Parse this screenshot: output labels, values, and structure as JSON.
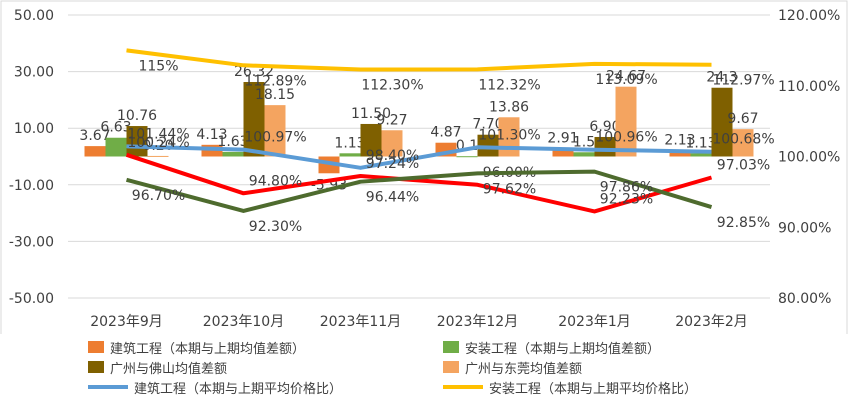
{
  "chart_data": {
    "type": "bar",
    "categories": [
      "2023年9月",
      "2023年10月",
      "2023年11月",
      "2023年12月",
      "2023年1月",
      "2023年2月"
    ],
    "y_left": {
      "min": -50,
      "max": 50,
      "ticks": [
        "50.00",
        "30.00",
        "10.00",
        "-10.00",
        "-30.00",
        "-50.00"
      ]
    },
    "y_right": {
      "min": 80,
      "max": 120,
      "ticks": [
        "120.00%",
        "110.00%",
        "100.00%",
        "90.00%",
        "80.00%"
      ]
    },
    "bar_series": [
      {
        "name": "建筑工程（本期与上期均值差额）",
        "color": "#ED7D31",
        "values": [
          3.67,
          4.13,
          -5.93,
          4.87,
          2.91,
          2.13
        ],
        "labels": [
          "3.67",
          "4.13",
          "-5.93",
          "4.87",
          "2.91",
          "2.13"
        ]
      },
      {
        "name": "安装工程（本期与上期均值差额）",
        "color": "#70AD47",
        "values": [
          6.63,
          1.63,
          1.13,
          0.1,
          1.5,
          1.13
        ],
        "labels": [
          "6.63",
          "1.63",
          "1.13",
          "0.1",
          "1.5",
          "1.13"
        ]
      },
      {
        "name": "广州与佛山均值差额",
        "color": "#7F6000",
        "values": [
          10.76,
          26.32,
          11.5,
          7.7,
          6.9,
          24.3
        ],
        "labels": [
          "10.76",
          "26.32",
          "11.50",
          "7.70",
          "6.90",
          "24.3"
        ]
      },
      {
        "name": "广州与东莞均值差额",
        "color": "#F4A460",
        "values": [
          0.2,
          18.15,
          9.27,
          13.86,
          24.67,
          9.67
        ],
        "labels": [
          "0.20",
          "18.15",
          "9.27",
          "13.86",
          "24.67",
          "9.67"
        ]
      }
    ],
    "line_series": [
      {
        "name": "建筑工程（本期与上期平均价格比）",
        "color": "#5B9BD5",
        "values": [
          101.44,
          100.97,
          98.4,
          101.3,
          100.96,
          100.68
        ],
        "labels": [
          "101.44%",
          "100.97%",
          "98.40%",
          "101.30%",
          "100.96%",
          "100.68%"
        ]
      },
      {
        "name": "安装工程（本期与上期平均价格比）",
        "color": "#FFC000",
        "values": [
          115,
          112.89,
          112.3,
          112.32,
          113.09,
          112.97
        ],
        "labels": [
          "115%",
          "112.89%",
          "112.30%",
          "112.32%",
          "113.09%",
          "112.97%"
        ]
      },
      {
        "name": "",
        "color": "#FF0000",
        "values": [
          100.24,
          94.8,
          97.24,
          96.0,
          92.23,
          97.03
        ],
        "labels": [
          "100.24%",
          "94.80%",
          "97.24%",
          "96.00%",
          "92.23%",
          "97.03%"
        ]
      },
      {
        "name": "",
        "color": "#4E6B2E",
        "values": [
          96.7,
          92.3,
          96.44,
          97.62,
          97.86,
          92.85
        ],
        "labels": [
          "96.70%",
          "92.30%",
          "96.44%",
          "97.62%",
          "97.86%",
          "92.85%"
        ]
      }
    ],
    "legend_position": "bottom",
    "grid": true
  }
}
